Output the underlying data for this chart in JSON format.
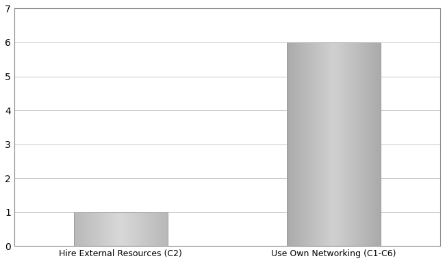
{
  "categories": [
    "Hire External Resources (C2)",
    "Use Own Networking (C1-C6)"
  ],
  "values": [
    1,
    6
  ],
  "bar_color_left": "#c8c8c8",
  "bar_color_right": "#c0c0c0",
  "bar_width": 0.22,
  "x_positions": [
    0.25,
    0.75
  ],
  "xlim": [
    0,
    1
  ],
  "ylim": [
    0,
    7
  ],
  "yticks": [
    0,
    1,
    2,
    3,
    4,
    5,
    6,
    7
  ],
  "background_color": "#ffffff",
  "grid_color": "#bbbbbb",
  "border_color": "#888888",
  "tick_fontsize": 10,
  "label_fontsize": 9,
  "spine_color": "#888888",
  "edgecolor": "#999999"
}
